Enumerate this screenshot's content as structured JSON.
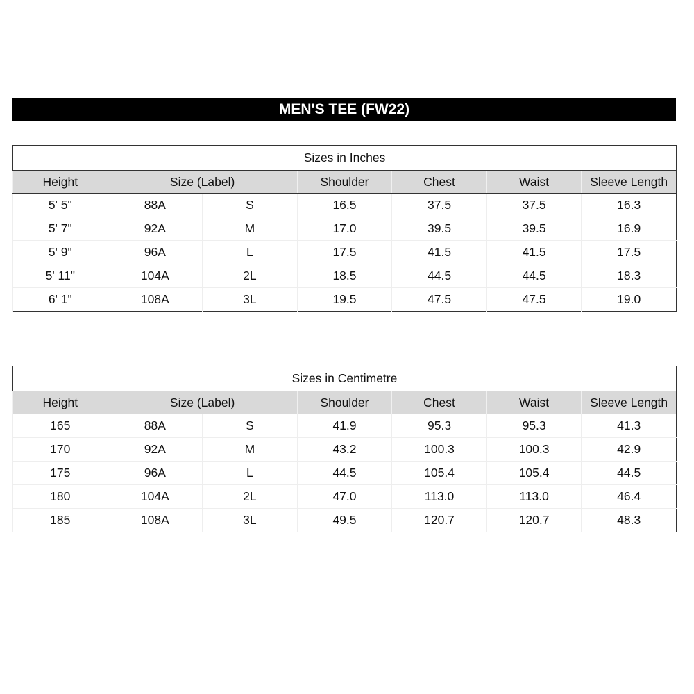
{
  "title": "MEN'S TEE (FW22)",
  "header_bg": "#d9d9d9",
  "tables": [
    {
      "caption": "Sizes in Inches",
      "headers": [
        "Height",
        "Size (Label)",
        "Shoulder",
        "Chest",
        "Waist",
        "Sleeve Length"
      ],
      "rows": [
        [
          "5' 5\"",
          "88A",
          "S",
          "16.5",
          "37.5",
          "37.5",
          "16.3"
        ],
        [
          "5' 7\"",
          "92A",
          "M",
          "17.0",
          "39.5",
          "39.5",
          "16.9"
        ],
        [
          "5' 9\"",
          "96A",
          "L",
          "17.5",
          "41.5",
          "41.5",
          "17.5"
        ],
        [
          "5' 11\"",
          "104A",
          "2L",
          "18.5",
          "44.5",
          "44.5",
          "18.3"
        ],
        [
          "6' 1\"",
          "108A",
          "3L",
          "19.5",
          "47.5",
          "47.5",
          "19.0"
        ]
      ]
    },
    {
      "caption": "Sizes in Centimetre",
      "headers": [
        "Height",
        "Size (Label)",
        "Shoulder",
        "Chest",
        "Waist",
        "Sleeve Length"
      ],
      "rows": [
        [
          "165",
          "88A",
          "S",
          "41.9",
          "95.3",
          "95.3",
          "41.3"
        ],
        [
          "170",
          "92A",
          "M",
          "43.2",
          "100.3",
          "100.3",
          "42.9"
        ],
        [
          "175",
          "96A",
          "L",
          "44.5",
          "105.4",
          "105.4",
          "44.5"
        ],
        [
          "180",
          "104A",
          "2L",
          "47.0",
          "113.0",
          "113.0",
          "46.4"
        ],
        [
          "185",
          "108A",
          "3L",
          "49.5",
          "120.7",
          "120.7",
          "48.3"
        ]
      ]
    }
  ]
}
